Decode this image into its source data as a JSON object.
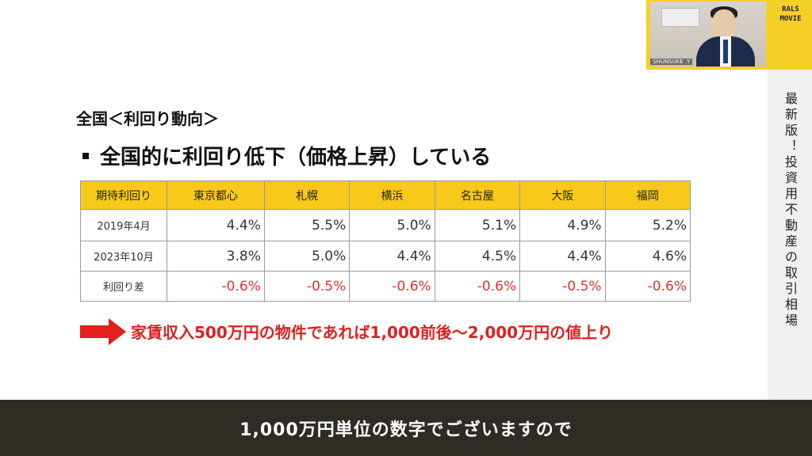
{
  "slide": {
    "heading": "全国＜利回り動向＞",
    "bullet": "全国的に利回り低下（価格上昇）している",
    "table": {
      "headers": [
        "期待利回り",
        "東京都心",
        "札幌",
        "横浜",
        "名古屋",
        "大阪",
        "福岡"
      ],
      "rows": [
        {
          "label": "2019年4月",
          "values": [
            "4.4%",
            "5.5%",
            "5.0%",
            "5.1%",
            "4.9%",
            "5.2%"
          ]
        },
        {
          "label": "2023年10月",
          "values": [
            "3.8%",
            "5.0%",
            "4.4%",
            "4.5%",
            "4.4%",
            "4.6%"
          ]
        },
        {
          "label": "利回り差",
          "values": [
            "-0.6%",
            "-0.5%",
            "-0.6%",
            "-0.6%",
            "-0.5%",
            "-0.6%"
          ]
        }
      ]
    },
    "conclusion": "家賃収入500万円の物件であれば1,000前後〜2,000万円の値上り",
    "accent_color": "#f6c91b",
    "negative_color": "#e03030"
  },
  "side_panel": {
    "title": "最新版！投資用不動産の取引相場"
  },
  "webcam": {
    "name_label": "SHUNSUKE .Y",
    "brand_line1": "RALS",
    "brand_line2": "MOVIE"
  },
  "subtitle": {
    "text": "1,000万円単位の数字でございますので"
  }
}
